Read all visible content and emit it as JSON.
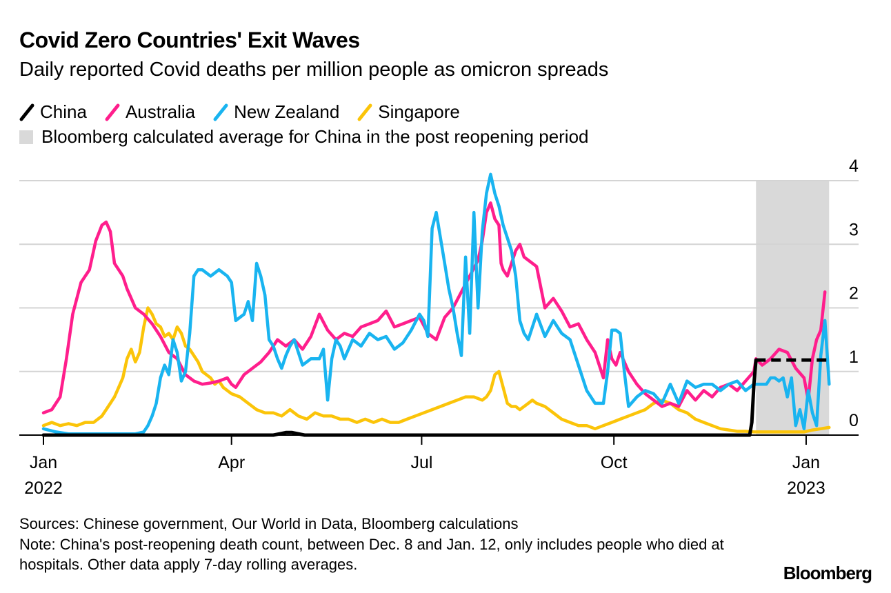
{
  "header": {
    "title": "Covid Zero Countries' Exit Waves",
    "subtitle": "Daily reported Covid deaths per million people as omicron spreads"
  },
  "legend": {
    "items": [
      {
        "label": "China",
        "color": "#000000"
      },
      {
        "label": "Australia",
        "color": "#ff1e8c"
      },
      {
        "label": "New Zealand",
        "color": "#19b4f0"
      },
      {
        "label": "Singapore",
        "color": "#fbc409"
      }
    ],
    "shade_label": "Bloomberg calculated average for China in the post reopening period",
    "shade_color": "#d9d9d9"
  },
  "chart_data": {
    "type": "line",
    "title": "Covid Zero Countries' Exit Waves",
    "ylabel": "Daily reported Covid deaths per million people",
    "ylim": [
      0,
      4
    ],
    "yticks": [
      0,
      1,
      2,
      3,
      4
    ],
    "y_axis_side": "right",
    "x_day_range": [
      -3,
      375
    ],
    "x_ticks": [
      {
        "day": 0,
        "label": "Jan",
        "sublabel": "2022"
      },
      {
        "day": 90,
        "label": "Apr",
        "sublabel": ""
      },
      {
        "day": 181,
        "label": "Jul",
        "sublabel": ""
      },
      {
        "day": 273,
        "label": "Oct",
        "sublabel": ""
      },
      {
        "day": 365,
        "label": "Jan",
        "sublabel": "2023"
      }
    ],
    "shaded_period": {
      "from_day": 341,
      "to_day": 376
    },
    "china_average": {
      "from_day": 341,
      "to_day": 376,
      "value": 1.18
    },
    "x_unit": "days since Jan 1, 2022",
    "series": [
      {
        "name": "China",
        "color": "#000000",
        "x": [
          0,
          110,
          113,
          116,
          119,
          122,
          125,
          330,
          338,
          339,
          340,
          341
        ],
        "y": [
          0,
          0,
          0.02,
          0.04,
          0.04,
          0.02,
          0,
          0,
          0,
          0.2,
          0.8,
          1.18
        ]
      },
      {
        "name": "Australia",
        "color": "#ff1e8c",
        "x": [
          0,
          4,
          8,
          11,
          14,
          18,
          22,
          25,
          28,
          30,
          32,
          34,
          36,
          38,
          40,
          42,
          44,
          48,
          52,
          56,
          60,
          64,
          68,
          72,
          76,
          80,
          84,
          88,
          90,
          92,
          96,
          100,
          104,
          108,
          112,
          116,
          120,
          124,
          128,
          132,
          136,
          140,
          144,
          148,
          152,
          156,
          160,
          164,
          168,
          172,
          176,
          180,
          184,
          188,
          192,
          196,
          200,
          204,
          208,
          210,
          212,
          214,
          216,
          218,
          219,
          220,
          222,
          224,
          226,
          228,
          230,
          232,
          236,
          240,
          244,
          248,
          252,
          256,
          260,
          264,
          268,
          270,
          272,
          274,
          276,
          280,
          284,
          288,
          292,
          296,
          300,
          304,
          308,
          312,
          316,
          320,
          324,
          328,
          332,
          336,
          340,
          341,
          344,
          348,
          352,
          356,
          360,
          364,
          366,
          368,
          370,
          372,
          374
        ],
        "y": [
          0.35,
          0.4,
          0.6,
          1.2,
          1.9,
          2.4,
          2.6,
          3.05,
          3.3,
          3.35,
          3.2,
          2.7,
          2.6,
          2.5,
          2.3,
          2.15,
          2.0,
          1.9,
          1.75,
          1.55,
          1.3,
          1.2,
          0.95,
          0.85,
          0.8,
          0.82,
          0.85,
          0.9,
          0.8,
          0.75,
          0.95,
          1.05,
          1.15,
          1.3,
          1.5,
          1.4,
          1.5,
          1.35,
          1.55,
          1.9,
          1.65,
          1.5,
          1.6,
          1.55,
          1.7,
          1.75,
          1.8,
          1.95,
          1.7,
          1.75,
          1.8,
          1.85,
          1.6,
          1.5,
          1.85,
          2.0,
          2.25,
          2.5,
          2.75,
          3.05,
          3.5,
          3.65,
          3.4,
          3.3,
          2.7,
          2.6,
          2.5,
          2.7,
          2.9,
          3.0,
          2.8,
          2.75,
          2.65,
          2.0,
          2.15,
          1.95,
          1.7,
          1.75,
          1.5,
          1.3,
          0.9,
          1.5,
          1.2,
          1.1,
          1.3,
          1.0,
          0.8,
          0.65,
          0.55,
          0.45,
          0.5,
          0.45,
          0.7,
          0.55,
          0.7,
          0.6,
          0.75,
          0.8,
          0.7,
          0.85,
          1.0,
          1.2,
          1.1,
          1.2,
          1.35,
          1.3,
          1.05,
          0.9,
          0.55,
          1.2,
          1.5,
          1.65,
          2.25
        ]
      },
      {
        "name": "New Zealand",
        "color": "#19b4f0",
        "x": [
          0,
          6,
          12,
          18,
          24,
          30,
          36,
          40,
          44,
          48,
          50,
          52,
          54,
          56,
          58,
          60,
          62,
          64,
          66,
          68,
          70,
          72,
          74,
          76,
          78,
          80,
          82,
          84,
          86,
          88,
          90,
          92,
          96,
          98,
          100,
          102,
          104,
          106,
          108,
          110,
          112,
          114,
          116,
          118,
          120,
          124,
          128,
          132,
          134,
          136,
          138,
          140,
          142,
          144,
          148,
          152,
          156,
          160,
          164,
          168,
          172,
          176,
          180,
          182,
          184,
          186,
          188,
          190,
          192,
          194,
          196,
          198,
          200,
          202,
          204,
          206,
          208,
          210,
          212,
          214,
          216,
          218,
          220,
          222,
          224,
          226,
          228,
          230,
          232,
          236,
          240,
          244,
          248,
          252,
          256,
          260,
          264,
          268,
          270,
          272,
          274,
          276,
          278,
          280,
          284,
          288,
          292,
          296,
          300,
          304,
          308,
          312,
          316,
          320,
          324,
          328,
          332,
          336,
          340,
          342,
          344,
          346,
          348,
          350,
          352,
          354,
          356,
          358,
          360,
          362,
          364,
          366,
          368,
          370,
          372,
          374,
          376
        ],
        "y": [
          0.1,
          0.05,
          0.02,
          0.02,
          0.02,
          0.02,
          0.02,
          0.02,
          0.02,
          0.05,
          0.15,
          0.3,
          0.5,
          0.9,
          1.1,
          0.95,
          1.5,
          1.3,
          0.85,
          1.0,
          1.6,
          2.5,
          2.6,
          2.6,
          2.55,
          2.5,
          2.55,
          2.6,
          2.55,
          2.5,
          2.4,
          1.8,
          1.9,
          2.1,
          1.8,
          2.7,
          2.5,
          2.2,
          1.5,
          1.4,
          1.2,
          1.05,
          1.25,
          1.4,
          1.5,
          1.1,
          1.2,
          1.2,
          1.35,
          0.55,
          1.2,
          1.5,
          1.4,
          1.2,
          1.5,
          1.4,
          1.6,
          1.5,
          1.55,
          1.35,
          1.45,
          1.65,
          1.9,
          1.8,
          1.55,
          3.25,
          3.5,
          3.1,
          2.7,
          2.3,
          2.0,
          1.6,
          1.25,
          2.8,
          1.6,
          3.5,
          2.0,
          3.2,
          3.8,
          4.1,
          3.8,
          3.6,
          3.3,
          3.1,
          2.9,
          2.5,
          1.8,
          1.6,
          1.5,
          1.9,
          1.55,
          1.8,
          1.6,
          1.5,
          1.1,
          0.7,
          0.5,
          0.5,
          1.0,
          1.65,
          1.65,
          1.6,
          1.0,
          0.45,
          0.6,
          0.7,
          0.65,
          0.5,
          0.8,
          0.5,
          0.85,
          0.75,
          0.8,
          0.8,
          0.7,
          0.8,
          0.85,
          0.7,
          0.8,
          0.8,
          0.8,
          0.8,
          0.9,
          0.9,
          0.85,
          0.9,
          0.6,
          0.9,
          0.15,
          0.4,
          0.1,
          0.7,
          0.35,
          0.15,
          1.25,
          1.8,
          0.8
        ]
      },
      {
        "name": "Singapore",
        "color": "#fbc409",
        "x": [
          0,
          4,
          8,
          12,
          16,
          20,
          24,
          28,
          30,
          32,
          34,
          36,
          38,
          40,
          42,
          44,
          46,
          48,
          50,
          52,
          54,
          56,
          58,
          60,
          62,
          64,
          66,
          68,
          70,
          72,
          74,
          76,
          78,
          80,
          82,
          84,
          86,
          88,
          90,
          94,
          98,
          102,
          106,
          110,
          114,
          118,
          122,
          126,
          130,
          134,
          138,
          142,
          146,
          150,
          154,
          158,
          162,
          166,
          170,
          174,
          178,
          182,
          186,
          190,
          194,
          198,
          202,
          206,
          210,
          212,
          214,
          216,
          218,
          220,
          222,
          224,
          226,
          228,
          230,
          232,
          234,
          236,
          240,
          244,
          248,
          252,
          256,
          260,
          264,
          268,
          272,
          276,
          280,
          284,
          288,
          292,
          296,
          300,
          304,
          308,
          312,
          316,
          320,
          324,
          328,
          332,
          336,
          340,
          344,
          348,
          352,
          356,
          360,
          364,
          368,
          372,
          376
        ],
        "y": [
          0.15,
          0.2,
          0.15,
          0.18,
          0.15,
          0.2,
          0.2,
          0.3,
          0.4,
          0.5,
          0.6,
          0.75,
          0.9,
          1.2,
          1.35,
          1.15,
          1.3,
          1.7,
          2.0,
          1.9,
          1.75,
          1.7,
          1.55,
          1.6,
          1.5,
          1.7,
          1.6,
          1.4,
          1.35,
          1.25,
          1.15,
          1.0,
          0.95,
          0.9,
          0.8,
          0.85,
          0.75,
          0.7,
          0.65,
          0.6,
          0.5,
          0.4,
          0.35,
          0.35,
          0.3,
          0.4,
          0.3,
          0.25,
          0.35,
          0.3,
          0.3,
          0.25,
          0.25,
          0.2,
          0.25,
          0.2,
          0.25,
          0.2,
          0.2,
          0.25,
          0.3,
          0.35,
          0.4,
          0.45,
          0.5,
          0.55,
          0.6,
          0.6,
          0.55,
          0.6,
          0.7,
          0.95,
          1.0,
          0.75,
          0.5,
          0.45,
          0.45,
          0.4,
          0.45,
          0.5,
          0.55,
          0.5,
          0.45,
          0.35,
          0.25,
          0.2,
          0.15,
          0.15,
          0.1,
          0.15,
          0.2,
          0.25,
          0.3,
          0.35,
          0.4,
          0.5,
          0.55,
          0.5,
          0.4,
          0.35,
          0.25,
          0.2,
          0.15,
          0.1,
          0.08,
          0.06,
          0.06,
          0.05,
          0.05,
          0.05,
          0.05,
          0.05,
          0.05,
          0.05,
          0.08,
          0.1,
          0.12
        ]
      }
    ]
  },
  "footer": {
    "sources": "Sources: Chinese government, Our World in Data, Bloomberg calculations",
    "note": "Note: China's post-reopening death count, between Dec. 8 and Jan. 12, only includes people who died at hospitals. Other data apply 7-day rolling averages.",
    "brand": "Bloomberg"
  }
}
